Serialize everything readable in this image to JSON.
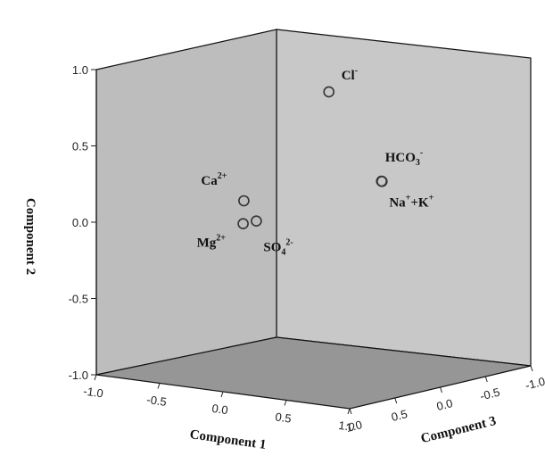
{
  "chart_data": {
    "type": "scatter",
    "title": "",
    "axes": {
      "x": {
        "label": "Component 1",
        "range": [
          -1.0,
          1.0
        ],
        "ticks": [
          "-1.0",
          "-0.5",
          "0.0",
          "0.5",
          "1.0"
        ]
      },
      "y": {
        "label": "Component 2",
        "range": [
          -1.0,
          1.0
        ],
        "ticks": [
          "-1.0",
          "-0.5",
          "0.0",
          "0.5",
          "1.0"
        ]
      },
      "z": {
        "label": "Component 3",
        "range": [
          -1.0,
          1.0
        ],
        "ticks": [
          "1.0",
          "0.5",
          "0.0",
          "-0.5",
          "-1.0"
        ]
      }
    },
    "points": [
      {
        "id": "cl",
        "label": "Cl",
        "sup": "-",
        "sub": "",
        "x": 0.55,
        "y": 0.97,
        "z": 0.6
      },
      {
        "id": "hco3",
        "label": "HCO",
        "sub": "3",
        "sup": "-",
        "x": 0.93,
        "y": 0.42,
        "z": 0.55
      },
      {
        "id": "nak",
        "label": "Na",
        "sup": "+",
        "sub": "",
        "tail": "+K",
        "tail_sup": "+",
        "x": 0.97,
        "y": 0.43,
        "z": 0.6
      },
      {
        "id": "ca",
        "label": "Ca",
        "sup": "2+",
        "sub": "",
        "x": -0.55,
        "y": 0.05,
        "z": 0.0
      },
      {
        "id": "mg",
        "label": "Mg",
        "sup": "2+",
        "sub": "",
        "x": -0.52,
        "y": -0.09,
        "z": 0.05
      },
      {
        "id": "so4",
        "label": "SO",
        "sub": "4",
        "sup": "2-",
        "x": -0.38,
        "y": -0.05,
        "z": 0.1
      }
    ],
    "grid": false,
    "legend": "none"
  }
}
